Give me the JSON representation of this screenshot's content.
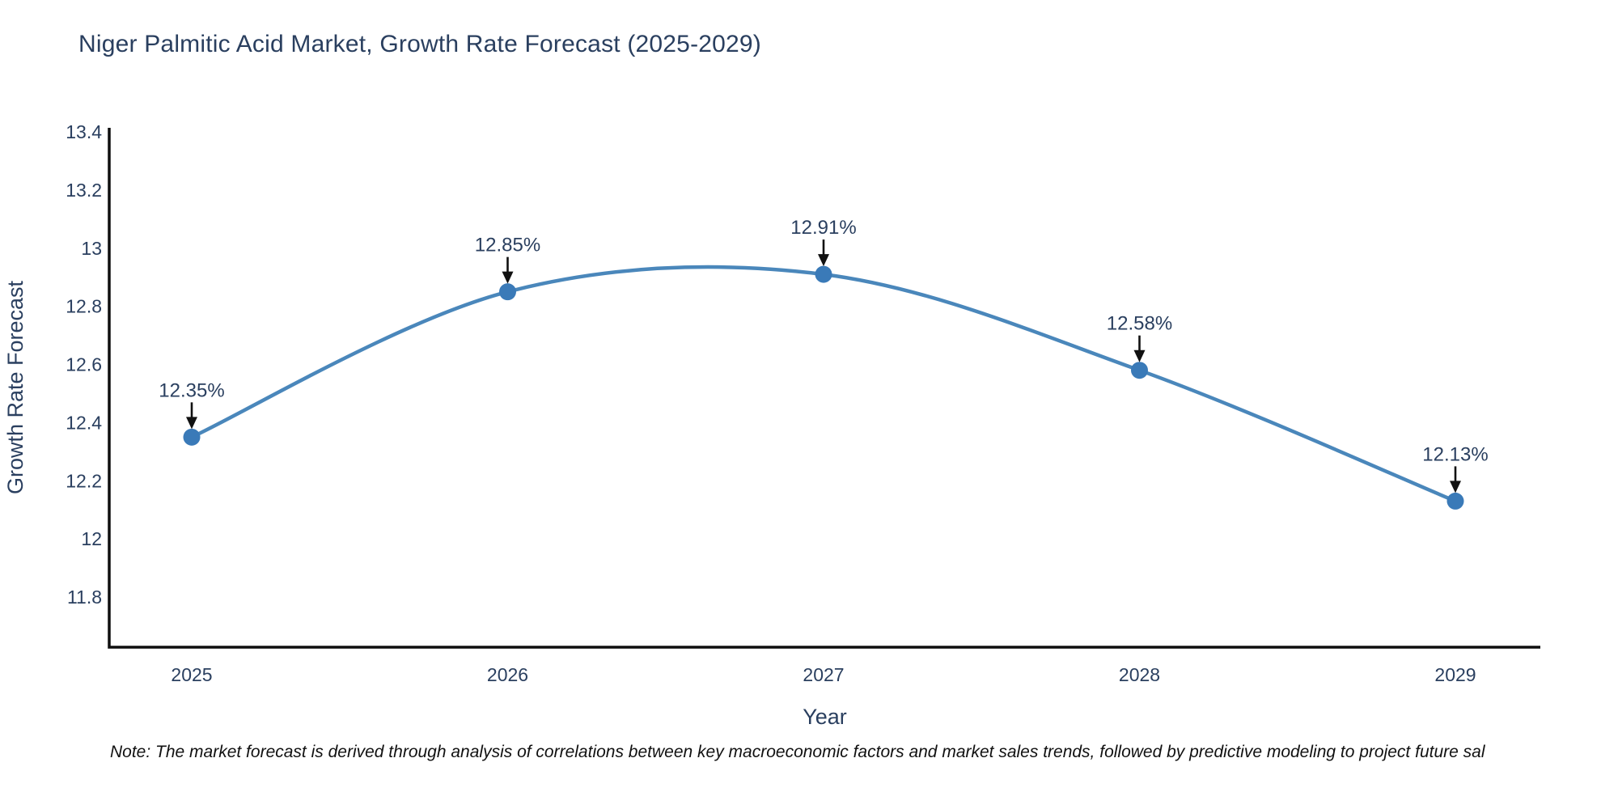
{
  "title": "Niger Palmitic Acid Market, Growth Rate Forecast (2025-2029)",
  "note": "Note: The market forecast is derived through analysis of correlations between key macroeconomic factors and market sales trends, followed by predictive modeling to project future sal",
  "chart_data": {
    "type": "line",
    "title": "Niger Palmitic Acid Market, Growth Rate Forecast (2025-2029)",
    "x": [
      "2025",
      "2026",
      "2027",
      "2028",
      "2029"
    ],
    "series": [
      {
        "name": "Growth Rate Forecast",
        "values": [
          12.35,
          12.85,
          12.91,
          12.58,
          12.13
        ]
      }
    ],
    "point_labels": [
      "12.35%",
      "12.85%",
      "12.91%",
      "12.58%",
      "12.13%"
    ],
    "xlabel": "Year",
    "ylabel": "Growth Rate Forecast",
    "yticks": [
      13.4,
      13.2,
      13.0,
      12.8,
      12.6,
      12.4,
      12.2,
      12.0,
      11.8
    ],
    "ytick_labels": [
      "13.4",
      "13.2",
      "13",
      "12.8",
      "12.6",
      "12.4",
      "12.2",
      "12",
      "11.8"
    ],
    "ylim": [
      11.63,
      13.41
    ],
    "line_shape": "spline",
    "grid": false,
    "legend": "none",
    "colors": {
      "line": "#4a87bb",
      "marker": "#3a7ab8",
      "text": "#2a3f5f",
      "axis": "#0f0f0f",
      "arrow": "#111111"
    }
  }
}
